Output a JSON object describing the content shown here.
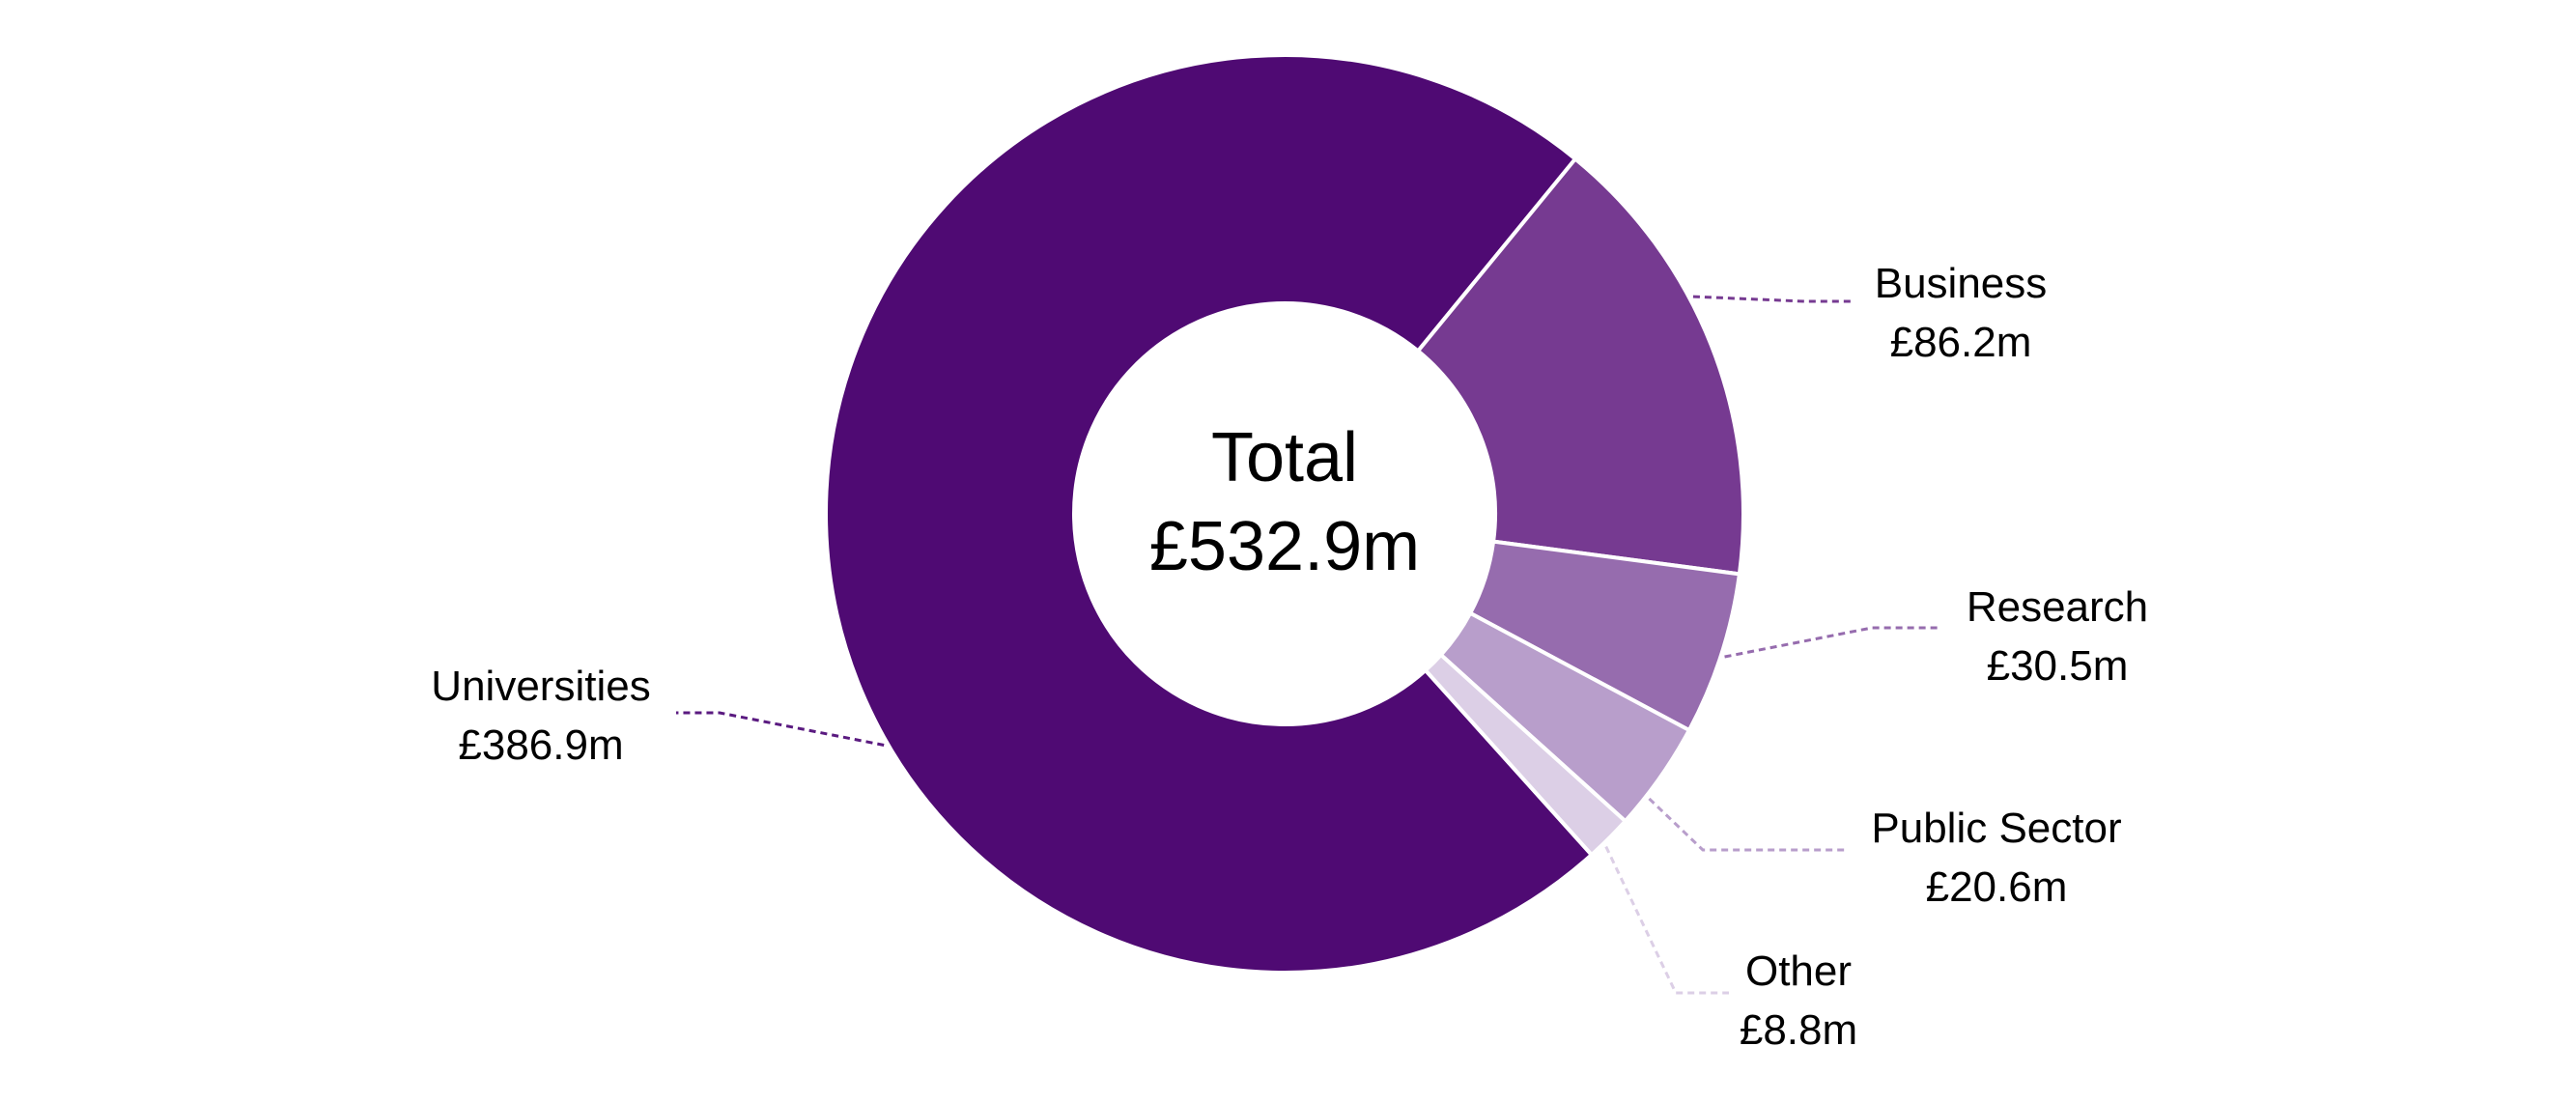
{
  "chart_data": {
    "type": "pie",
    "variant": "donut",
    "center_label": {
      "line1": "Total",
      "line2": "£532.9m"
    },
    "unit": "£m",
    "total": 532.9,
    "slices": [
      {
        "label": "Universities",
        "value": 386.9,
        "value_label": "£386.9m",
        "color": "#4f0a73"
      },
      {
        "label": "Business",
        "value": 86.2,
        "value_label": "£86.2m",
        "color": "#763a91"
      },
      {
        "label": "Research",
        "value": 30.5,
        "value_label": "£30.5m",
        "color": "#966cae"
      },
      {
        "label": "Public Sector",
        "value": 20.6,
        "value_label": "£20.6m",
        "color": "#b89ecb"
      },
      {
        "label": "Other",
        "value": 8.8,
        "value_label": "£8.8m",
        "color": "#dccfe6"
      }
    ]
  }
}
